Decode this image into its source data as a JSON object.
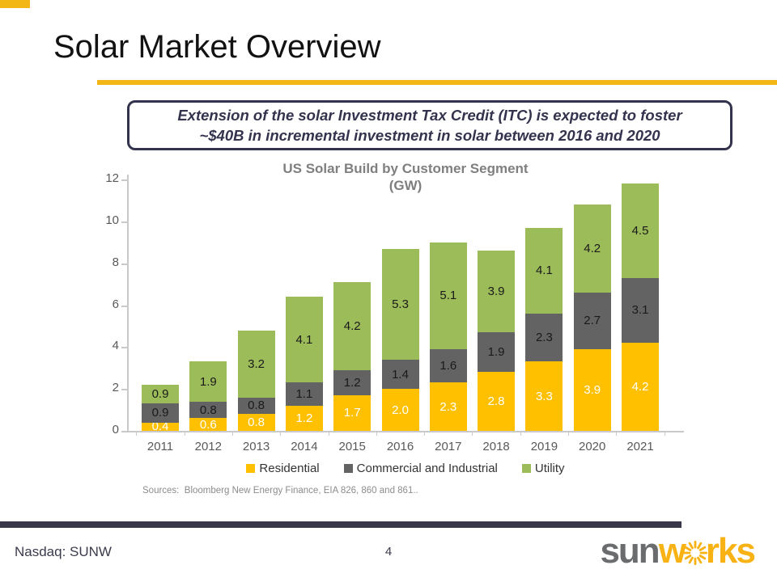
{
  "slide": {
    "title": "Solar Market Overview",
    "callout_line1": "Extension of the solar Investment Tax Credit (ITC) is expected to foster",
    "callout_line2": "~$40B in incremental investment in solar between 2016 and 2020",
    "sources": "Sources:  Bloomberg New Energy Finance, EIA 826, 860 and 861..",
    "footer": {
      "ticker": "Nasdaq: SUNW",
      "page_number": "4",
      "logo_sun": "sun",
      "logo_works_pre": "w",
      "logo_works_post": "rks"
    }
  },
  "chart_data": {
    "type": "bar",
    "stacked": true,
    "title": "US Solar Build by Customer Segment",
    "subtitle": "(GW)",
    "categories": [
      "2011",
      "2012",
      "2013",
      "2014",
      "2015",
      "2016",
      "2017",
      "2018",
      "2019",
      "2020",
      "2021"
    ],
    "series": [
      {
        "name": "Residential",
        "color": "#FFC000",
        "label_color": "#FFFFFF",
        "values": [
          0.4,
          0.6,
          0.8,
          1.2,
          1.7,
          2.0,
          2.3,
          2.8,
          3.3,
          3.9,
          4.2
        ]
      },
      {
        "name": "Commercial and Industrial",
        "color": "#636363",
        "label_color": "#1A1A1A",
        "values": [
          0.9,
          0.8,
          0.8,
          1.1,
          1.2,
          1.4,
          1.6,
          1.9,
          2.3,
          2.7,
          3.1
        ]
      },
      {
        "name": "Utility",
        "color": "#9CBB59",
        "label_color": "#1A1A1A",
        "values": [
          0.9,
          1.9,
          3.2,
          4.1,
          4.2,
          5.3,
          5.1,
          3.9,
          4.1,
          4.2,
          4.5
        ]
      }
    ],
    "ylim": [
      0,
      12
    ],
    "yticks": [
      0,
      2,
      4,
      6,
      8,
      10,
      12
    ],
    "ylabel": "",
    "xlabel": "",
    "grid": false,
    "legend_position": "bottom",
    "totals": [
      2.2,
      3.3,
      4.8,
      6.4,
      7.1,
      8.7,
      9.0,
      8.6,
      9.7,
      10.8,
      11.8
    ]
  },
  "colors": {
    "accent_gold": "#F2B715",
    "navy": "#33334E",
    "axis_gray": "#C9C9C9",
    "axis_text": "#595959",
    "logo_gray": "#6A6C6E",
    "logo_yellow": "#F8B213"
  }
}
